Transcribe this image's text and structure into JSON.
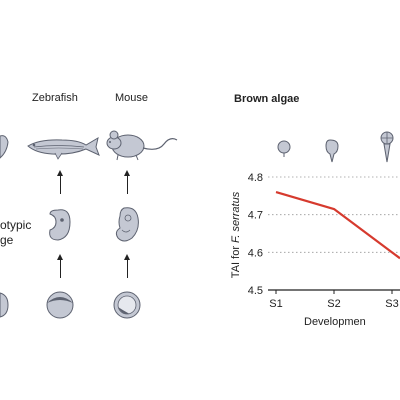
{
  "left_panel": {
    "columns": [
      {
        "label": "Zebrafish"
      },
      {
        "label": "Mouse"
      }
    ],
    "row_label_lines": [
      "otypic",
      "ge"
    ]
  },
  "right_panel": {
    "title": "Brown algae"
  },
  "chart_data": {
    "type": "line",
    "title": "Brown algae",
    "xlabel": "Developmen",
    "ylabel_prefix": "TAI for ",
    "ylabel_species": "F. serratus",
    "categories": [
      "S1",
      "S2",
      "S3"
    ],
    "series": [
      {
        "values": [
          4.76,
          4.715,
          4.6
        ],
        "color": "#d63a2e"
      }
    ],
    "ylim": [
      4.5,
      4.8
    ],
    "yticks": [
      "4.5",
      "4.6",
      "4.7",
      "4.8"
    ],
    "grid": "dotted horizontal"
  },
  "colors": {
    "line": "#d63a2e",
    "icon_fill": "#c4c8d3",
    "icon_stroke": "#5d6270"
  }
}
